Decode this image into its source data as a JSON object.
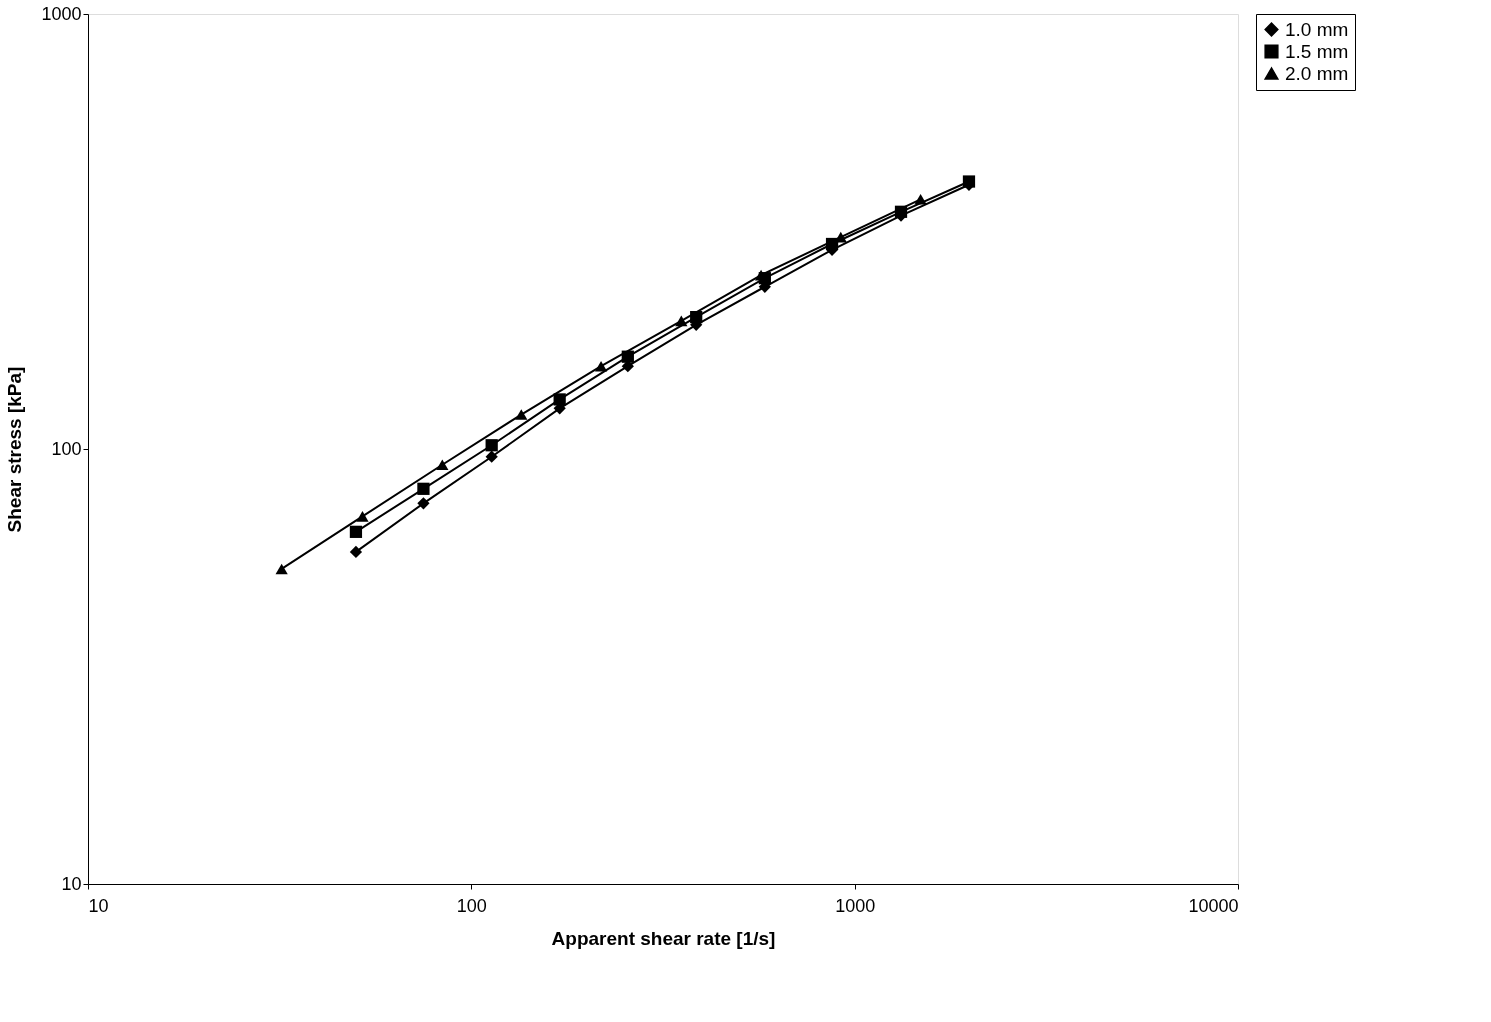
{
  "chart_data": {
    "type": "line",
    "xlabel": "Apparent shear rate [1/s]",
    "ylabel": "Shear stress [kPa]",
    "log": "xy",
    "xlim": [
      10,
      10000
    ],
    "ylim": [
      10,
      1000
    ],
    "xticks": [
      10,
      100,
      1000,
      10000
    ],
    "yticks": [
      10,
      100,
      1000
    ],
    "grid": false,
    "legend": "right",
    "line_style": "solid",
    "series": [
      {
        "name": "1.0 mm",
        "color": "#000000",
        "marker": "diamond",
        "x": [
          50,
          75,
          113,
          170,
          256,
          386,
          583,
          873,
          1321,
          1987
        ],
        "values": [
          58,
          75,
          96,
          124,
          155,
          193,
          236,
          287,
          344,
          405
        ]
      },
      {
        "name": "1.5 mm",
        "color": "#000000",
        "marker": "square",
        "x": [
          50,
          75,
          113,
          170,
          256,
          386,
          583,
          873,
          1321,
          1987
        ],
        "values": [
          64.5,
          81,
          102,
          130,
          163,
          201,
          247,
          296,
          351,
          412
        ]
      },
      {
        "name": "2.0 mm",
        "color": "#000000",
        "marker": "triangle",
        "x": [
          32,
          52,
          84,
          135,
          218,
          353,
          570,
          920,
          1486
        ],
        "values": [
          53,
          70,
          92,
          120,
          155,
          197,
          251,
          307,
          375
        ]
      }
    ]
  }
}
